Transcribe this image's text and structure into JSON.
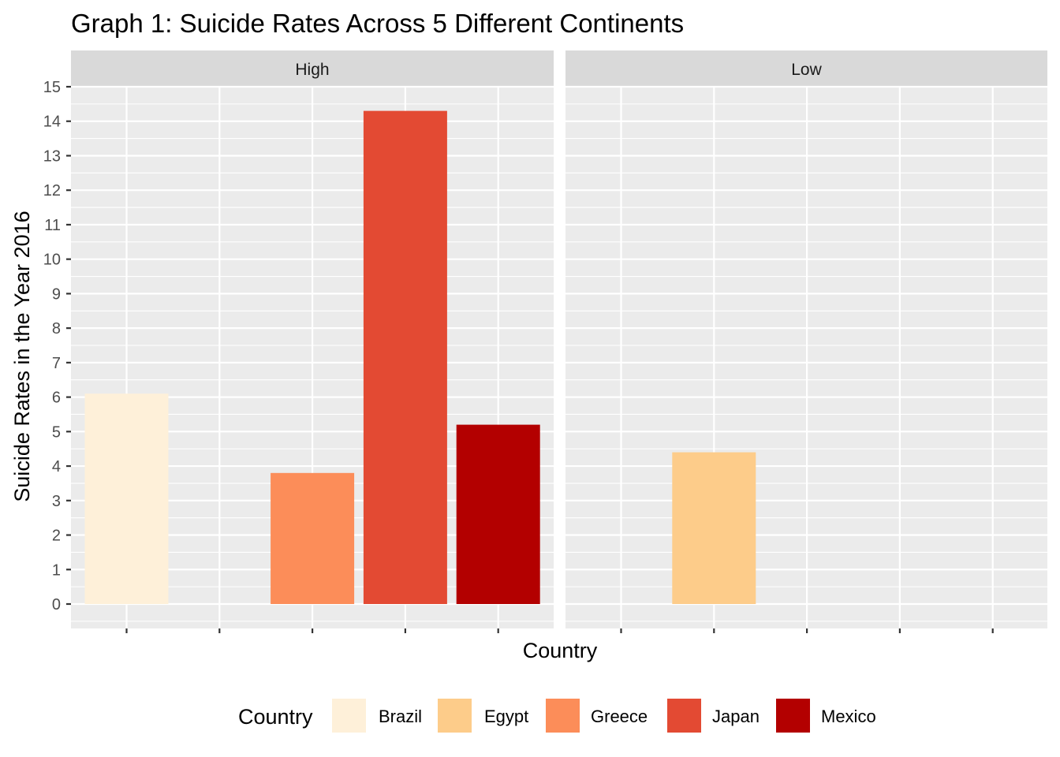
{
  "chart_data": {
    "type": "bar",
    "title": "Graph 1: Suicide Rates Across 5 Different Continents",
    "xlabel": "Country",
    "ylabel": "Suicide Rates in the Year 2016",
    "ylim": [
      0,
      15
    ],
    "yticks": [
      "0",
      "1",
      "2",
      "3",
      "4",
      "5",
      "6",
      "7",
      "8",
      "9",
      "10",
      "11",
      "12",
      "13",
      "14",
      "15"
    ],
    "categories": [
      "Brazil",
      "Egypt",
      "Greece",
      "Japan",
      "Mexico"
    ],
    "facets": [
      {
        "label": "High",
        "bars": [
          {
            "country": "Brazil",
            "value": 6.1
          },
          {
            "country": "Greece",
            "value": 3.8
          },
          {
            "country": "Japan",
            "value": 14.3
          },
          {
            "country": "Mexico",
            "value": 5.2
          }
        ]
      },
      {
        "label": "Low",
        "bars": [
          {
            "country": "Egypt",
            "value": 4.4
          }
        ]
      }
    ],
    "legend": {
      "title": "Country",
      "placement": "bottom",
      "entries": [
        {
          "label": "Brazil",
          "color": "#fef0d9"
        },
        {
          "label": "Egypt",
          "color": "#fdcc8a"
        },
        {
          "label": "Greece",
          "color": "#fc8d59"
        },
        {
          "label": "Japan",
          "color": "#e34a33"
        },
        {
          "label": "Mexico",
          "color": "#b30000"
        }
      ]
    },
    "grid": true,
    "colors": {
      "panel_background": "#ebebeb",
      "strip_background": "#d9d9d9",
      "grid_line": "#ffffff"
    }
  }
}
